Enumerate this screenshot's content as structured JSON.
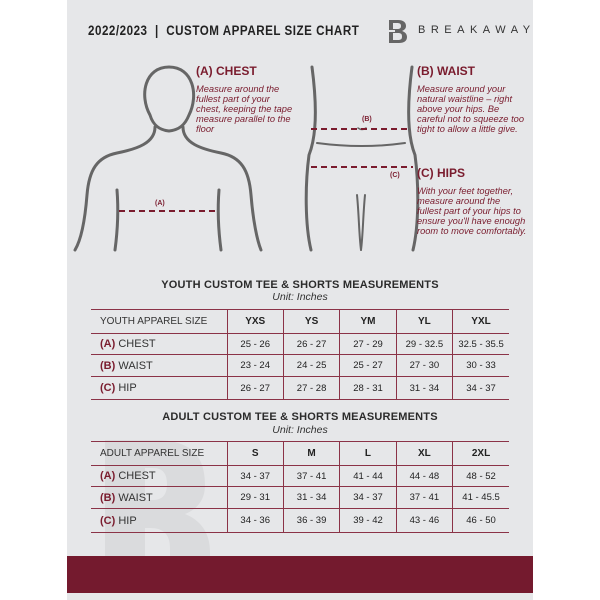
{
  "header": {
    "title": "2022/2023  |  CUSTOM APPAREL SIZE CHART",
    "brand": "BREAKAWAY",
    "logo_letter": "B"
  },
  "chest": {
    "heading": "(A) CHEST",
    "text": "Measure around the fullest part of your chest, keeping the tape measure parallel to the floor",
    "marker": "(A)"
  },
  "waist": {
    "heading": "(B) WAIST",
    "text": "Measure around your natural waistline – right above your hips. Be careful not to squeeze too tight to allow a little give.",
    "marker": "(B)"
  },
  "hips": {
    "heading": "(C) HIPS",
    "text": "With your feet together, measure around the fullest part of your hips to ensure you'll have enough room to move comfortably.",
    "marker": "(C)"
  },
  "youth": {
    "title": "YOUTH CUSTOM TEE & SHORTS MEASUREMENTS",
    "unit": "Unit: Inches",
    "header": "YOUTH APPAREL SIZE",
    "sizes": [
      "YXS",
      "YS",
      "YM",
      "YL",
      "YXL"
    ],
    "rows": [
      {
        "code": "(A)",
        "name": "CHEST",
        "values": [
          "25 - 26",
          "26 - 27",
          "27 - 29",
          "29 - 32.5",
          "32.5 - 35.5"
        ]
      },
      {
        "code": "(B)",
        "name": "WAIST",
        "values": [
          "23 - 24",
          "24 - 25",
          "25 - 27",
          "27 - 30",
          "30 - 33"
        ]
      },
      {
        "code": "(C)",
        "name": "HIP",
        "values": [
          "26 - 27",
          "27 - 28",
          "28 - 31",
          "31 - 34",
          "34 - 37"
        ]
      }
    ]
  },
  "adult": {
    "title": "ADULT CUSTOM TEE & SHORTS MEASUREMENTS",
    "unit": "Unit: Inches",
    "header": "ADULT APPAREL SIZE",
    "sizes": [
      "S",
      "M",
      "L",
      "XL",
      "2XL"
    ],
    "rows": [
      {
        "code": "(A)",
        "name": "CHEST",
        "values": [
          "34 - 37",
          "37 - 41",
          "41 - 44",
          "44 - 48",
          "48 - 52"
        ]
      },
      {
        "code": "(B)",
        "name": "WAIST",
        "values": [
          "29 - 31",
          "31 - 34",
          "34 - 37",
          "37 - 41",
          "41 - 45.5"
        ]
      },
      {
        "code": "(C)",
        "name": "HIP",
        "values": [
          "34 - 36",
          "36 - 39",
          "39 - 42",
          "43 - 46",
          "46 - 50"
        ]
      }
    ]
  },
  "colors": {
    "accent": "#741a2e",
    "background": "#e6e7e9"
  }
}
